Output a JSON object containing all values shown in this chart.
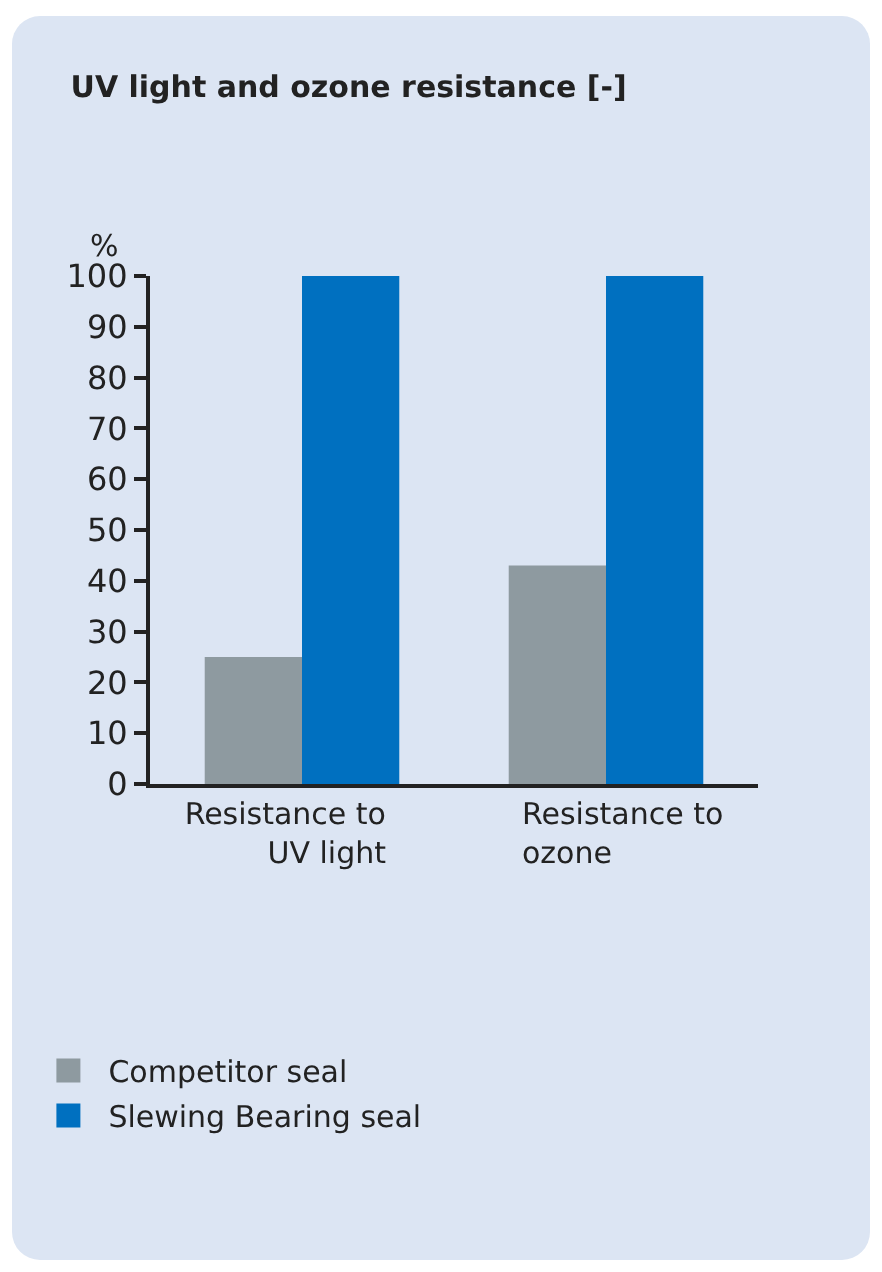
{
  "chart_data": {
    "type": "bar",
    "title": "UV light and ozone resistance [-]",
    "ylabel": "%",
    "categories": [
      "Resistance to UV light",
      "Resistance to ozone"
    ],
    "series": [
      {
        "name": "Competitor seal",
        "color": "#8e9aa0",
        "values": [
          25,
          43
        ]
      },
      {
        "name": "Slewing Bearing seal",
        "color": "#0070c0",
        "values": [
          100,
          100
        ]
      }
    ],
    "ylim": [
      0,
      100
    ],
    "yticks": [
      0,
      10,
      20,
      30,
      40,
      50,
      60,
      70,
      80,
      90,
      100
    ],
    "grid": false,
    "legend": "bottom"
  }
}
